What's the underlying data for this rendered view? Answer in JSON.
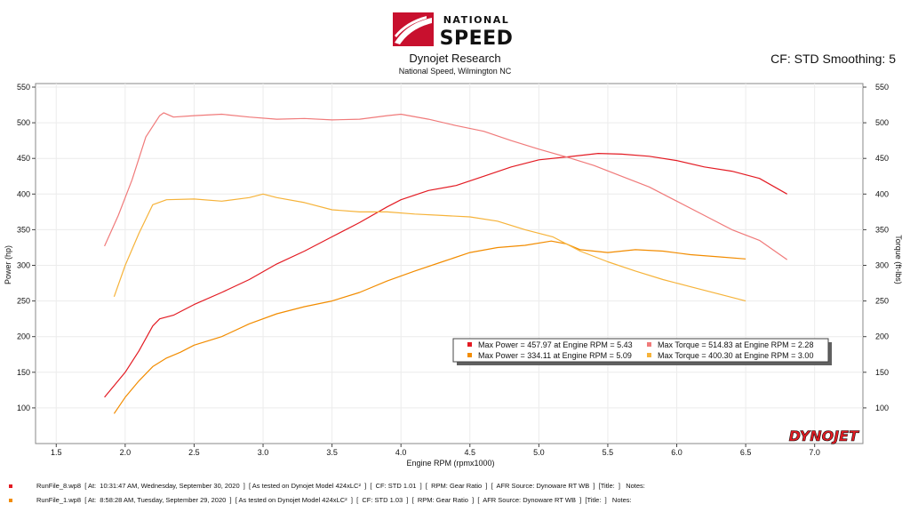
{
  "header": {
    "logo_text_top": "NATIONAL",
    "logo_text_bottom": "SPEED",
    "title": "Dynojet Research",
    "subtitle": "National Speed, Wilmington NC",
    "cf_text": "CF: STD Smoothing: 5"
  },
  "colors": {
    "run1": "#e31b23",
    "run1_light": "#f07a7a",
    "run2": "#f28c00",
    "run2_light": "#f6b33a",
    "grid": "#ececec"
  },
  "watermark": "DYNOJET",
  "chart_data": {
    "type": "line",
    "xlabel": "Engine RPM (rpmx1000)",
    "ylabel_left": "Power (hp)",
    "ylabel_right": "Torque (ft-lbs)",
    "xlim": [
      1.35,
      7.35
    ],
    "ylim": [
      50,
      555
    ],
    "x_ticks": [
      "1.5",
      "2.0",
      "2.5",
      "3.0",
      "3.5",
      "4.0",
      "4.5",
      "5.0",
      "5.5",
      "6.0",
      "6.5",
      "7.0"
    ],
    "y_ticks": [
      "550",
      "500",
      "450",
      "400",
      "350",
      "300",
      "250",
      "200",
      "150",
      "100"
    ],
    "grid": true,
    "legend_position": "inside-bottom-right",
    "legend": [
      "Max Power = 457.97 at Engine RPM = 5.43",
      "Max Torque = 514.83 at Engine RPM = 2.28",
      "Max Power = 334.11 at Engine RPM = 5.09",
      "Max Torque = 400.30 at Engine RPM = 3.00"
    ],
    "series": [
      {
        "name": "Power",
        "run": "RunFile_8.wp8",
        "color_key": "run1",
        "x": [
          1.85,
          2.0,
          2.1,
          2.2,
          2.25,
          2.35,
          2.5,
          2.7,
          2.9,
          3.1,
          3.3,
          3.5,
          3.7,
          3.9,
          4.0,
          4.2,
          4.4,
          4.6,
          4.8,
          5.0,
          5.2,
          5.43,
          5.6,
          5.8,
          6.0,
          6.2,
          6.4,
          6.6,
          6.8
        ],
        "y": [
          115,
          150,
          180,
          215,
          225,
          230,
          245,
          262,
          280,
          302,
          320,
          340,
          360,
          382,
          392,
          405,
          412,
          425,
          438,
          448,
          452,
          457,
          456,
          453,
          447,
          438,
          432,
          422,
          400
        ]
      },
      {
        "name": "Torque",
        "run": "RunFile_8.wp8",
        "color_key": "run1_light",
        "x": [
          1.85,
          1.95,
          2.05,
          2.15,
          2.25,
          2.28,
          2.35,
          2.5,
          2.7,
          2.9,
          3.1,
          3.3,
          3.5,
          3.7,
          3.9,
          4.0,
          4.2,
          4.4,
          4.6,
          4.8,
          5.0,
          5.2,
          5.4,
          5.6,
          5.8,
          6.0,
          6.2,
          6.4,
          6.6,
          6.8
        ],
        "y": [
          327,
          370,
          420,
          480,
          510,
          514,
          508,
          510,
          512,
          508,
          505,
          506,
          504,
          505,
          510,
          512,
          505,
          496,
          488,
          475,
          463,
          452,
          440,
          425,
          410,
          390,
          370,
          350,
          335,
          308
        ]
      },
      {
        "name": "Power",
        "run": "RunFile_1.wp8",
        "color_key": "run2",
        "x": [
          1.92,
          2.0,
          2.1,
          2.2,
          2.3,
          2.4,
          2.5,
          2.7,
          2.9,
          3.1,
          3.3,
          3.5,
          3.7,
          3.9,
          4.1,
          4.3,
          4.5,
          4.7,
          4.9,
          5.09,
          5.2,
          5.3,
          5.5,
          5.7,
          5.9,
          6.1,
          6.3,
          6.5
        ],
        "y": [
          92,
          115,
          138,
          158,
          170,
          178,
          188,
          200,
          218,
          232,
          242,
          250,
          262,
          278,
          292,
          305,
          318,
          325,
          328,
          334,
          330,
          322,
          318,
          322,
          320,
          315,
          312,
          309
        ]
      },
      {
        "name": "Torque",
        "run": "RunFile_1.wp8",
        "color_key": "run2_light",
        "x": [
          1.92,
          2.0,
          2.1,
          2.2,
          2.3,
          2.5,
          2.7,
          2.9,
          3.0,
          3.1,
          3.3,
          3.5,
          3.7,
          3.9,
          4.1,
          4.3,
          4.5,
          4.7,
          4.9,
          5.1,
          5.3,
          5.5,
          5.7,
          5.9,
          6.1,
          6.3,
          6.5
        ],
        "y": [
          256,
          300,
          345,
          385,
          392,
          393,
          390,
          395,
          400,
          395,
          388,
          378,
          375,
          375,
          372,
          370,
          368,
          362,
          350,
          340,
          320,
          305,
          292,
          280,
          270,
          260,
          250
        ]
      }
    ]
  },
  "footer": {
    "line1": "RunFile_8.wp8  [ At:  10:31:47 AM, Wednesday, September 30, 2020  ]  [ As tested on Dynojet Model 424xLC²  ]  [  CF: STD 1.01  ]  [  RPM: Gear Ratio  ]  [  AFR Source: Dynoware RT WB  ]  [Title:  ]   Notes:",
    "line2": "RunFile_1.wp8  [ At:  8:58:28 AM, Tuesday, September 29, 2020  ]  [ As tested on Dynojet Model 424xLC²  ]  [  CF: STD 1.03  ]  [  RPM: Gear Ratio  ]  [  AFR Source: Dynoware RT WB  ]  [Title:  ]   Notes:"
  }
}
